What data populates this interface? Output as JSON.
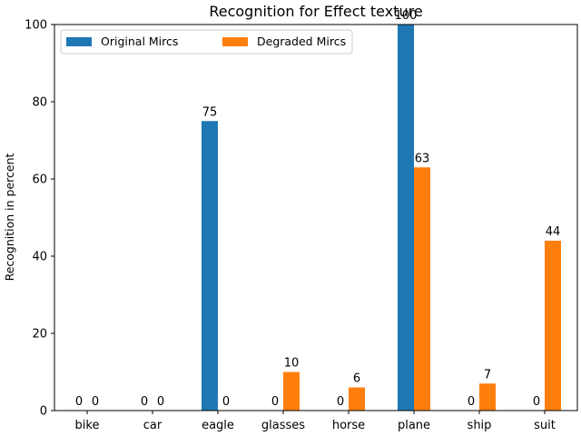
{
  "chart_data": {
    "type": "bar",
    "title": "Recognition for Effect texture",
    "xlabel": "",
    "ylabel": "Recognition in percent",
    "categories": [
      "bike",
      "car",
      "eagle",
      "glasses",
      "horse",
      "plane",
      "ship",
      "suit"
    ],
    "series": [
      {
        "name": "Original Mircs",
        "color": "#1f77b4",
        "values": [
          0,
          0,
          75,
          0,
          0,
          100,
          0,
          0
        ]
      },
      {
        "name": "Degraded Mircs",
        "color": "#ff7f0e",
        "values": [
          0,
          0,
          0,
          10,
          6,
          63,
          7,
          44
        ]
      }
    ],
    "ylim": [
      0,
      100
    ],
    "yticks": [
      0,
      20,
      40,
      60,
      80,
      100
    ],
    "grid": false,
    "legend": "top-left"
  }
}
